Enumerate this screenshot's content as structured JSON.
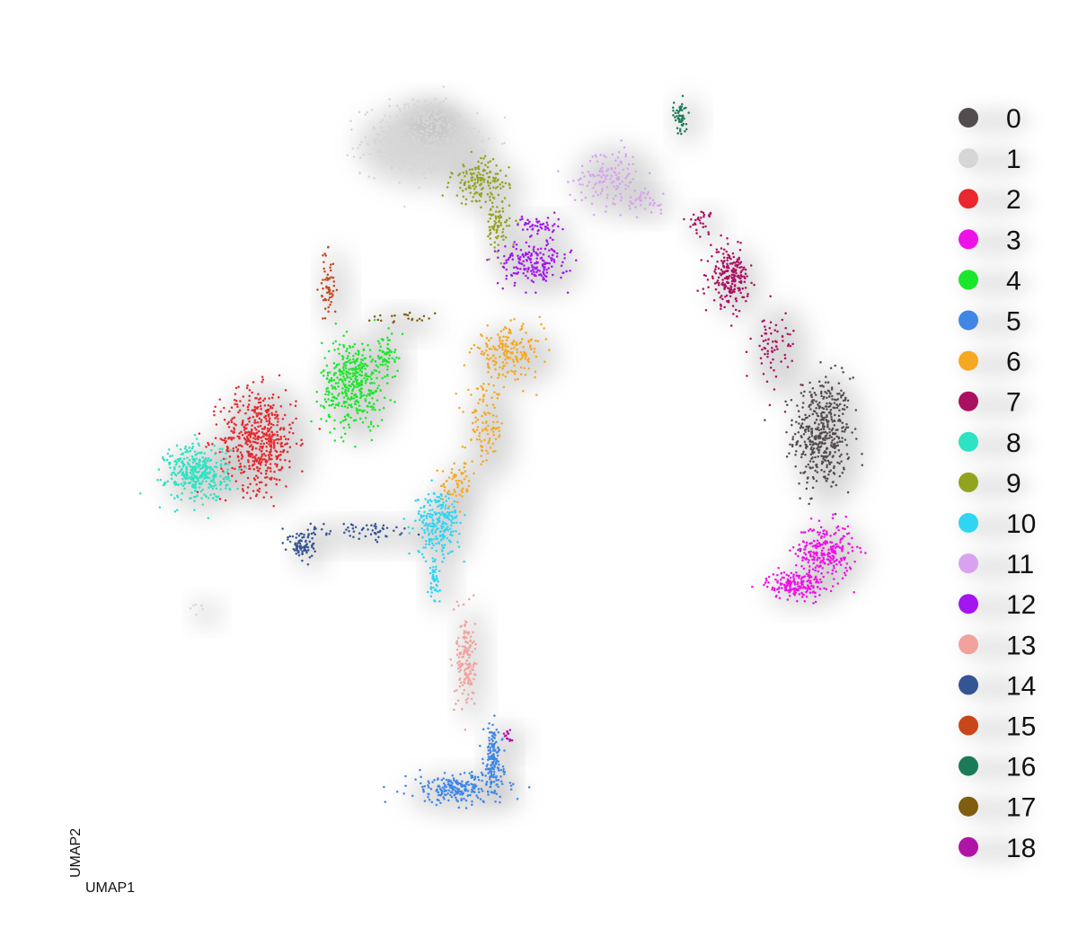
{
  "chart_data": {
    "type": "scatter",
    "title": "",
    "xlabel": "UMAP1",
    "ylabel": "UMAP2",
    "xlim": [
      -10,
      10
    ],
    "ylim": [
      -10,
      10
    ],
    "grid": false,
    "legend_placement": "right",
    "background_glow": true,
    "legend": [
      "0",
      "1",
      "2",
      "3",
      "4",
      "5",
      "6",
      "7",
      "8",
      "9",
      "10",
      "11",
      "12",
      "13",
      "14",
      "15",
      "16",
      "17",
      "18"
    ],
    "clusters": [
      {
        "label": "0",
        "color": "#534C4F",
        "parts": [
          {
            "center": [
              7.35,
              1.3
            ],
            "spread": [
              0.45,
              0.9
            ],
            "n": 460
          }
        ]
      },
      {
        "label": "1",
        "color": "#D6D6D6",
        "parts": [
          {
            "center": [
              -2.2,
              8.35
            ],
            "spread": [
              0.9,
              0.55
            ],
            "n": 360
          },
          {
            "center": [
              -2.05,
              9.0
            ],
            "spread": [
              0.35,
              0.25
            ],
            "n": 90
          },
          {
            "center": [
              -7.4,
              -2.9
            ],
            "spread": [
              0.15,
              0.1
            ],
            "n": 6
          }
        ]
      },
      {
        "label": "2",
        "color": "#E8272E",
        "parts": [
          {
            "center": [
              -6.0,
              1.15
            ],
            "spread": [
              0.6,
              0.8
            ],
            "n": 520
          }
        ]
      },
      {
        "label": "3",
        "color": "#EE12E6",
        "parts": [
          {
            "center": [
              7.4,
              -1.55
            ],
            "spread": [
              0.45,
              0.45
            ],
            "n": 260
          },
          {
            "center": [
              6.7,
              -2.35
            ],
            "spread": [
              0.45,
              0.22
            ],
            "n": 180
          }
        ]
      },
      {
        "label": "4",
        "color": "#1CE62C",
        "parts": [
          {
            "center": [
              -3.75,
              2.5
            ],
            "spread": [
              0.5,
              0.7
            ],
            "n": 420
          },
          {
            "center": [
              -3.0,
              3.2
            ],
            "spread": [
              0.15,
              0.3
            ],
            "n": 60
          }
        ]
      },
      {
        "label": "5",
        "color": "#3F86E5",
        "parts": [
          {
            "center": [
              -1.3,
              -7.25
            ],
            "spread": [
              0.75,
              0.25
            ],
            "n": 220
          },
          {
            "center": [
              -0.45,
              -6.55
            ],
            "spread": [
              0.15,
              0.55
            ],
            "n": 150
          }
        ]
      },
      {
        "label": "6",
        "color": "#F6A820",
        "parts": [
          {
            "center": [
              -0.1,
              3.25
            ],
            "spread": [
              0.55,
              0.4
            ],
            "n": 190
          },
          {
            "center": [
              -0.65,
              1.45
            ],
            "spread": [
              0.3,
              0.65
            ],
            "n": 110
          },
          {
            "center": [
              -1.3,
              0.1
            ],
            "spread": [
              0.25,
              0.35
            ],
            "n": 60
          }
        ]
      },
      {
        "label": "7",
        "color": "#AB0F62",
        "parts": [
          {
            "center": [
              5.15,
              5.05
            ],
            "spread": [
              0.3,
              0.45
            ],
            "n": 220
          },
          {
            "center": [
              6.2,
              3.4
            ],
            "spread": [
              0.35,
              0.6
            ],
            "n": 70
          },
          {
            "center": [
              4.45,
              6.4
            ],
            "spread": [
              0.2,
              0.2
            ],
            "n": 30
          }
        ]
      },
      {
        "label": "8",
        "color": "#2CE3C3",
        "parts": [
          {
            "center": [
              -7.45,
              0.35
            ],
            "spread": [
              0.5,
              0.45
            ],
            "n": 360
          }
        ]
      },
      {
        "label": "9",
        "color": "#94A31F",
        "parts": [
          {
            "center": [
              -0.75,
              7.35
            ],
            "spread": [
              0.45,
              0.35
            ],
            "n": 150
          },
          {
            "center": [
              -0.35,
              6.25
            ],
            "spread": [
              0.2,
              0.4
            ],
            "n": 80
          }
        ]
      },
      {
        "label": "10",
        "color": "#2FD5F2",
        "parts": [
          {
            "center": [
              -1.75,
              -0.85
            ],
            "spread": [
              0.35,
              0.5
            ],
            "n": 240
          },
          {
            "center": [
              -1.85,
              -2.2
            ],
            "spread": [
              0.1,
              0.35
            ],
            "n": 50
          }
        ]
      },
      {
        "label": "11",
        "color": "#D9A2F0",
        "parts": [
          {
            "center": [
              2.3,
              7.5
            ],
            "spread": [
              0.55,
              0.45
            ],
            "n": 130
          },
          {
            "center": [
              3.1,
              6.9
            ],
            "spread": [
              0.3,
              0.15
            ],
            "n": 40
          }
        ]
      },
      {
        "label": "12",
        "color": "#A416F0",
        "parts": [
          {
            "center": [
              0.5,
              5.4
            ],
            "spread": [
              0.55,
              0.35
            ],
            "n": 190
          },
          {
            "center": [
              0.65,
              6.3
            ],
            "spread": [
              0.35,
              0.15
            ],
            "n": 50
          }
        ]
      },
      {
        "label": "13",
        "color": "#F2A29D",
        "parts": [
          {
            "center": [
              -1.1,
              -4.15
            ],
            "spread": [
              0.15,
              0.8
            ],
            "n": 160
          }
        ]
      },
      {
        "label": "14",
        "color": "#345594",
        "parts": [
          {
            "center": [
              -4.95,
              -1.4
            ],
            "spread": [
              0.2,
              0.25
            ],
            "n": 90
          },
          {
            "center": [
              -3.55,
              -1.05
            ],
            "spread": [
              0.9,
              0.15
            ],
            "n": 60
          }
        ]
      },
      {
        "label": "15",
        "color": "#C7471A",
        "parts": [
          {
            "center": [
              -4.35,
              4.85
            ],
            "spread": [
              0.12,
              0.55
            ],
            "n": 60
          }
        ]
      },
      {
        "label": "16",
        "color": "#1C7B57",
        "parts": [
          {
            "center": [
              4.0,
              8.95
            ],
            "spread": [
              0.1,
              0.3
            ],
            "n": 55
          }
        ]
      },
      {
        "label": "17",
        "color": "#7F5E12",
        "parts": [
          {
            "center": [
              -2.75,
              4.05
            ],
            "spread": [
              0.45,
              0.1
            ],
            "n": 22
          }
        ]
      },
      {
        "label": "18",
        "color": "#B014A6",
        "parts": [
          {
            "center": [
              -0.1,
              -6.0
            ],
            "spread": [
              0.08,
              0.12
            ],
            "n": 14
          }
        ]
      }
    ]
  }
}
